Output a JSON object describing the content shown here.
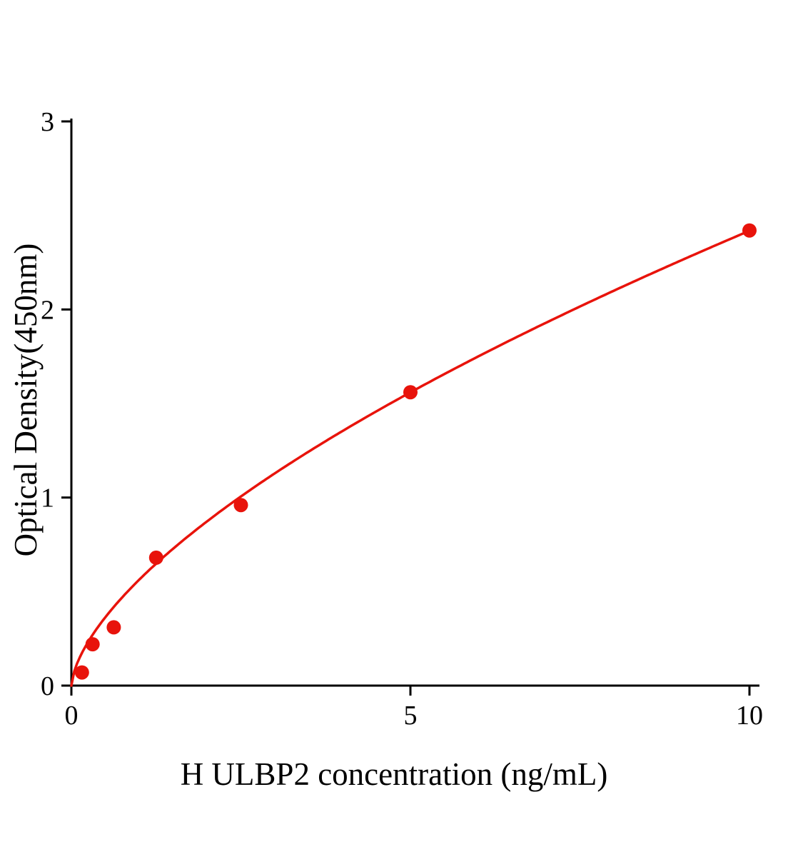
{
  "chart_data": {
    "type": "scatter",
    "title": "",
    "xlabel": "H ULBP2 concentration (ng/mL)",
    "ylabel": "Optical Density(450nm)",
    "xlim": [
      0,
      10
    ],
    "ylim": [
      0,
      3
    ],
    "x_ticks": [
      0,
      5,
      10
    ],
    "y_ticks": [
      0,
      1,
      2,
      3
    ],
    "grid": false,
    "legend": false,
    "points": {
      "x": [
        0.156,
        0.3125,
        0.625,
        1.25,
        2.5,
        5,
        10
      ],
      "y": [
        0.07,
        0.22,
        0.31,
        0.68,
        0.96,
        1.56,
        2.42
      ]
    },
    "fit_curve": {
      "model": "power",
      "a": 0.563,
      "b": 0.633
    },
    "marker_radius": 10,
    "colors": {
      "curve": "#e8130b",
      "point": "#e8130b",
      "axis": "#000000"
    }
  }
}
